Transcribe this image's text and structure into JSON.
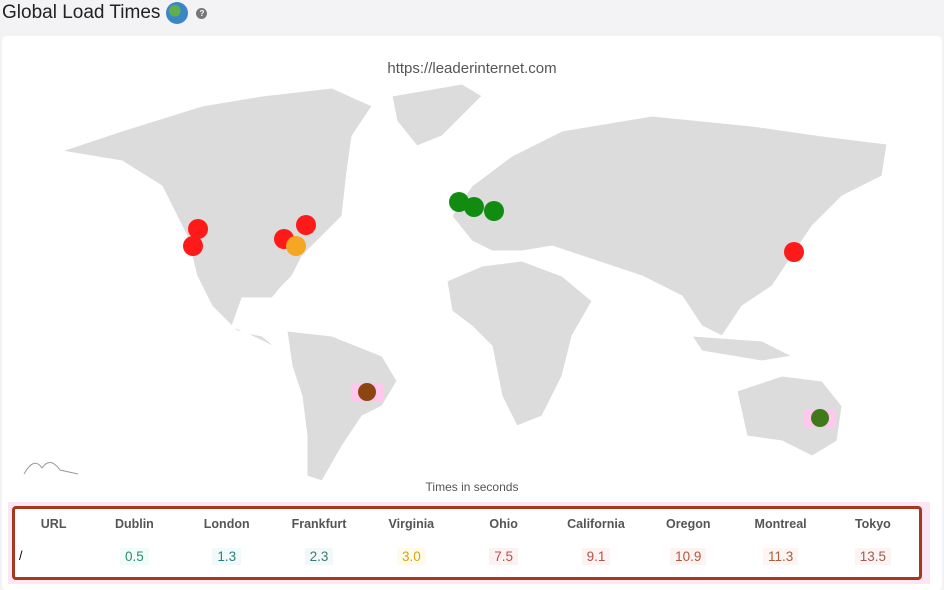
{
  "header": {
    "title": "Global Load Times",
    "globe_icon": "globe-icon",
    "help_icon": "?"
  },
  "map": {
    "site_url": "https://leaderinternet.com",
    "caption": "Times in seconds",
    "markers": [
      {
        "city": "Oregon",
        "color": "#ff1a1a"
      },
      {
        "city": "California",
        "color": "#ff1a1a"
      },
      {
        "city": "Ohio",
        "color": "#ff1a1a"
      },
      {
        "city": "Virginia",
        "color": "#f5a623"
      },
      {
        "city": "Montreal",
        "color": "#ff1a1a"
      },
      {
        "city": "Dublin",
        "color": "#118c11"
      },
      {
        "city": "London",
        "color": "#118c11"
      },
      {
        "city": "Frankfurt",
        "color": "#118c11"
      },
      {
        "city": "Tokyo",
        "color": "#ff1a1a"
      },
      {
        "city": "",
        "color": "#8b4513"
      },
      {
        "city": "",
        "color": "#3f7a1a"
      }
    ]
  },
  "table": {
    "headers": [
      "URL",
      "Dublin",
      "London",
      "Frankfurt",
      "Virginia",
      "Ohio",
      "California",
      "Oregon",
      "Montreal",
      "Tokyo"
    ],
    "rows": [
      {
        "url": "/",
        "values": [
          {
            "v": "0.5",
            "color": "#2e8b6e",
            "bg": "#f0fcfa"
          },
          {
            "v": "1.3",
            "color": "#2e7f7a",
            "bg": "#f0fafa"
          },
          {
            "v": "2.3",
            "color": "#3d7a74",
            "bg": "#f2f8f7"
          },
          {
            "v": "3.0",
            "color": "#d4a514",
            "bg": "#fffbeb"
          },
          {
            "v": "7.5",
            "color": "#c0504d",
            "bg": "#fdf2f2"
          },
          {
            "v": "9.1",
            "color": "#b5524a",
            "bg": "#fdf3f3"
          },
          {
            "v": "10.9",
            "color": "#b2583d",
            "bg": "#fdf4f1"
          },
          {
            "v": "11.3",
            "color": "#a8613f",
            "bg": "#fcf5f2"
          },
          {
            "v": "13.5",
            "color": "#a05a52",
            "bg": "#fbf4f3"
          }
        ]
      }
    ]
  }
}
